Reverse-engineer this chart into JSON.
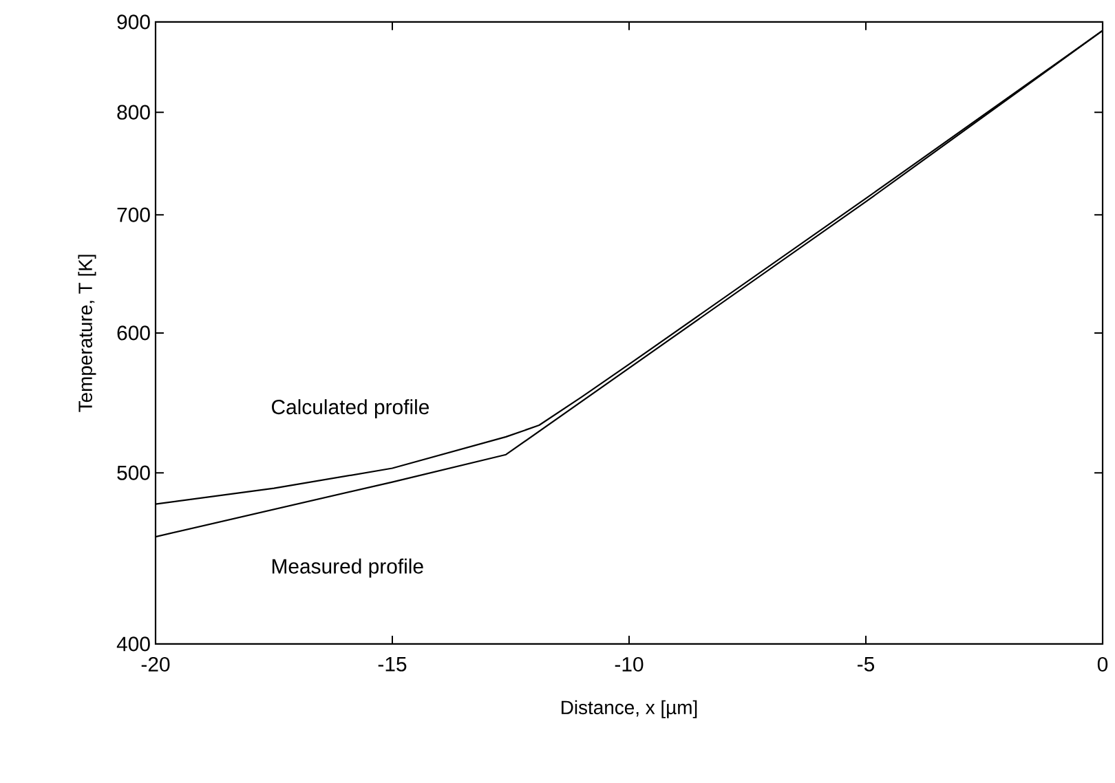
{
  "chart_data": {
    "type": "line",
    "xlabel": "Distance, x [µm]",
    "ylabel": "Temperature, T [K]",
    "xlim": [
      -20,
      0
    ],
    "xticks": [
      -20,
      -15,
      -10,
      -5,
      0
    ],
    "ylim": [
      400,
      900
    ],
    "yticks": [
      400,
      500,
      600,
      700,
      800,
      900
    ],
    "log": "y",
    "legend": false,
    "grid": false,
    "marker": "none",
    "line_style": "solid",
    "series": [
      {
        "name": "Calculated profile",
        "color": "#000000",
        "x": [
          -20,
          -17.5,
          -15,
          -12.6,
          -11.9,
          -11,
          -10,
          -5,
          0
        ],
        "values": [
          480,
          490,
          503,
          524,
          532,
          552,
          576,
          715,
          890
        ]
      },
      {
        "name": "Measured profile",
        "color": "#000000",
        "x": [
          -20,
          -15,
          -12.6,
          -5,
          0
        ],
        "values": [
          460,
          494,
          512,
          712,
          890
        ]
      }
    ]
  }
}
